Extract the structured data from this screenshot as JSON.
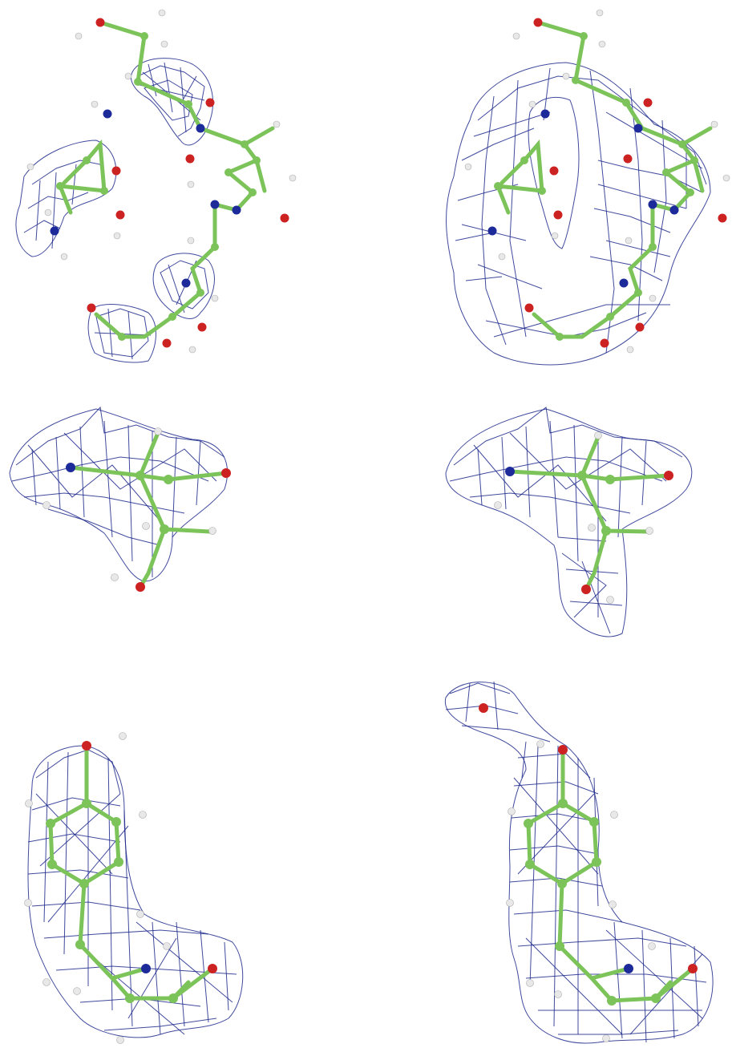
{
  "figure": {
    "panels": [
      {
        "id": "p1",
        "molecule": "peptide-loop",
        "density": "partial"
      },
      {
        "id": "p2",
        "molecule": "peptide-loop",
        "density": "full"
      },
      {
        "id": "p3",
        "molecule": "serine-residue",
        "density": "partial"
      },
      {
        "id": "p4",
        "molecule": "serine-residue",
        "density": "full"
      },
      {
        "id": "p5",
        "molecule": "tyrosine-residue",
        "density": "partial"
      },
      {
        "id": "p6",
        "molecule": "tyrosine-residue",
        "density": "full"
      }
    ],
    "colors": {
      "mesh": "#1f2a8c",
      "carbon": "#7cc35a",
      "bond": "#7cc35a",
      "oxygen": "#cc2222",
      "nitrogen": "#1c2a9a",
      "hydrogen": "#e8e8e8",
      "background": "#ffffff"
    }
  }
}
